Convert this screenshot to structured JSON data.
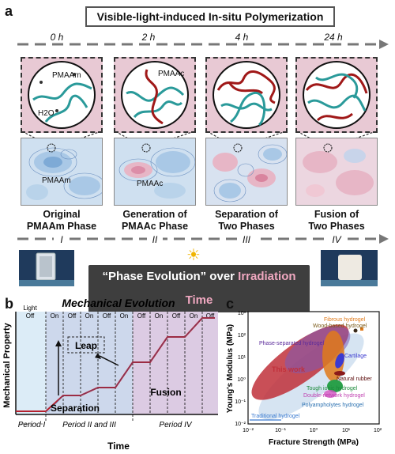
{
  "panel_a": {
    "letter": "a",
    "title": "Visible-light-induced In-situ Polymerization",
    "times": [
      "0 h",
      "2 h",
      "4 h",
      "24 h"
    ],
    "zoom_labels": [
      "PMAAm",
      "H2O",
      "PMAAc"
    ],
    "map_labels": [
      "PMAAm",
      "PMAAc"
    ],
    "phases": [
      {
        "line1": "Original",
        "line2": "PMAAm Phase"
      },
      {
        "line1": "Generation of",
        "line2": "PMAAc Phase"
      },
      {
        "line1": "Separation of",
        "line2": "Two Phases"
      },
      {
        "line1": "Fusion of",
        "line2": "Two Phases"
      }
    ],
    "numerals": [
      "I",
      "II",
      "III",
      "IV"
    ],
    "banner_pre": "“Phase Evolution” over ",
    "banner_hl": "Irradiation Time",
    "sun_icon": "☀"
  },
  "panel_b": {
    "letter": "b",
    "title": "Mechanical Evolution",
    "ylabel": "Mechanical Property",
    "xlabel": "Time",
    "light_label": "Light",
    "light_states": [
      "Off",
      "On",
      "Off",
      "On",
      "Off",
      "On",
      "Off",
      "On",
      "Off",
      "On",
      "Off"
    ],
    "annotations": {
      "leap": "Leap",
      "separation": "Separation",
      "fusion": "Fusion"
    },
    "periods": [
      "Period I",
      "Period II and III",
      "Period IV"
    ],
    "colors": {
      "curve": "#b5202e",
      "period1": "#dcecf7",
      "period2": "#cdd8ec",
      "period3": "#dccbe3"
    }
  },
  "panel_c": {
    "letter": "c",
    "ylabel": "Young's Modulus (MPa)",
    "xlabel": "Fracture Strength (MPa)",
    "x_ticks": [
      "10⁻²",
      "10⁻¹",
      "10⁰",
      "10¹",
      "10²"
    ],
    "y_ticks": [
      "10³",
      "10²",
      "10¹",
      "10⁰",
      "10⁻¹",
      "10⁻²"
    ],
    "labels": {
      "fibrous": "Fibrous hydrogel",
      "wood": "Wood-based hydrogel",
      "phase_sep": "Phase-separated hydrogel",
      "cartilage": "Cartilage",
      "this_work": "This work",
      "rubber": "Natural rubber",
      "tough_ionic": "Tough ionic hydrogel",
      "double_network": "Double-network hydrogel",
      "polyampholytes": "Polyampholytes hydrogel",
      "traditional": "Traditional hydrogel"
    },
    "colors": {
      "this_work": "#c0303a",
      "fibrous": "#e07a1a",
      "wood": "#8a6a2a",
      "phase_sep": "#6a3aa0",
      "cartilage": "#3a3ad0",
      "rubber": "#8a1a1a",
      "tough_ionic": "#2aa04a",
      "double_network": "#d050c0",
      "polyampholytes": "#2a70b0",
      "traditional": "#3a7ad0"
    }
  }
}
